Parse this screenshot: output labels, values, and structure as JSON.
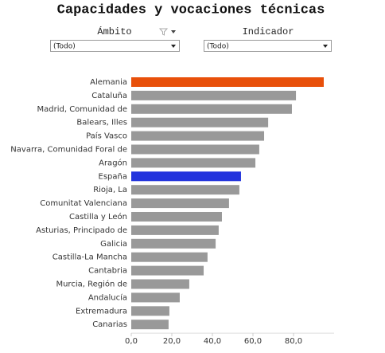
{
  "chart_data": {
    "type": "bar",
    "orientation": "horizontal",
    "title": "Capacidades y vocaciones técnicas",
    "categories": [
      "Alemania",
      "Cataluña",
      "Madrid, Comunidad de",
      "Balears, Illes",
      "País Vasco",
      "Navarra, Comunidad Foral de",
      "Aragón",
      "España",
      "Rioja, La",
      "Comunitat Valenciana",
      "Castilla y León",
      "Asturias, Principado de",
      "Galicia",
      "Castilla-La Mancha",
      "Cantabria",
      "Murcia, Región de",
      "Andalucía",
      "Extremadura",
      "Canarias"
    ],
    "values": [
      94.9,
      81.2,
      79.2,
      67.5,
      65.5,
      63.1,
      61.2,
      54.1,
      53.3,
      48.2,
      44.7,
      43.1,
      41.6,
      37.6,
      35.7,
      28.6,
      23.9,
      18.8,
      18.4
    ],
    "colors": [
      "#e8500a",
      "#999999",
      "#999999",
      "#999999",
      "#999999",
      "#999999",
      "#999999",
      "#2233dd",
      "#999999",
      "#999999",
      "#999999",
      "#999999",
      "#999999",
      "#999999",
      "#999999",
      "#999999",
      "#999999",
      "#999999",
      "#999999"
    ],
    "xlim": [
      0,
      100
    ],
    "xticks": [
      {
        "value": 0,
        "label": "0,0"
      },
      {
        "value": 20,
        "label": "20,0"
      },
      {
        "value": 40,
        "label": "40,0"
      },
      {
        "value": 60,
        "label": "60,0"
      },
      {
        "value": 80,
        "label": "80,0"
      }
    ]
  },
  "filters": [
    {
      "label": "Ámbito",
      "value": "(Todo)"
    },
    {
      "label": "Indicador",
      "value": "(Todo)"
    }
  ]
}
